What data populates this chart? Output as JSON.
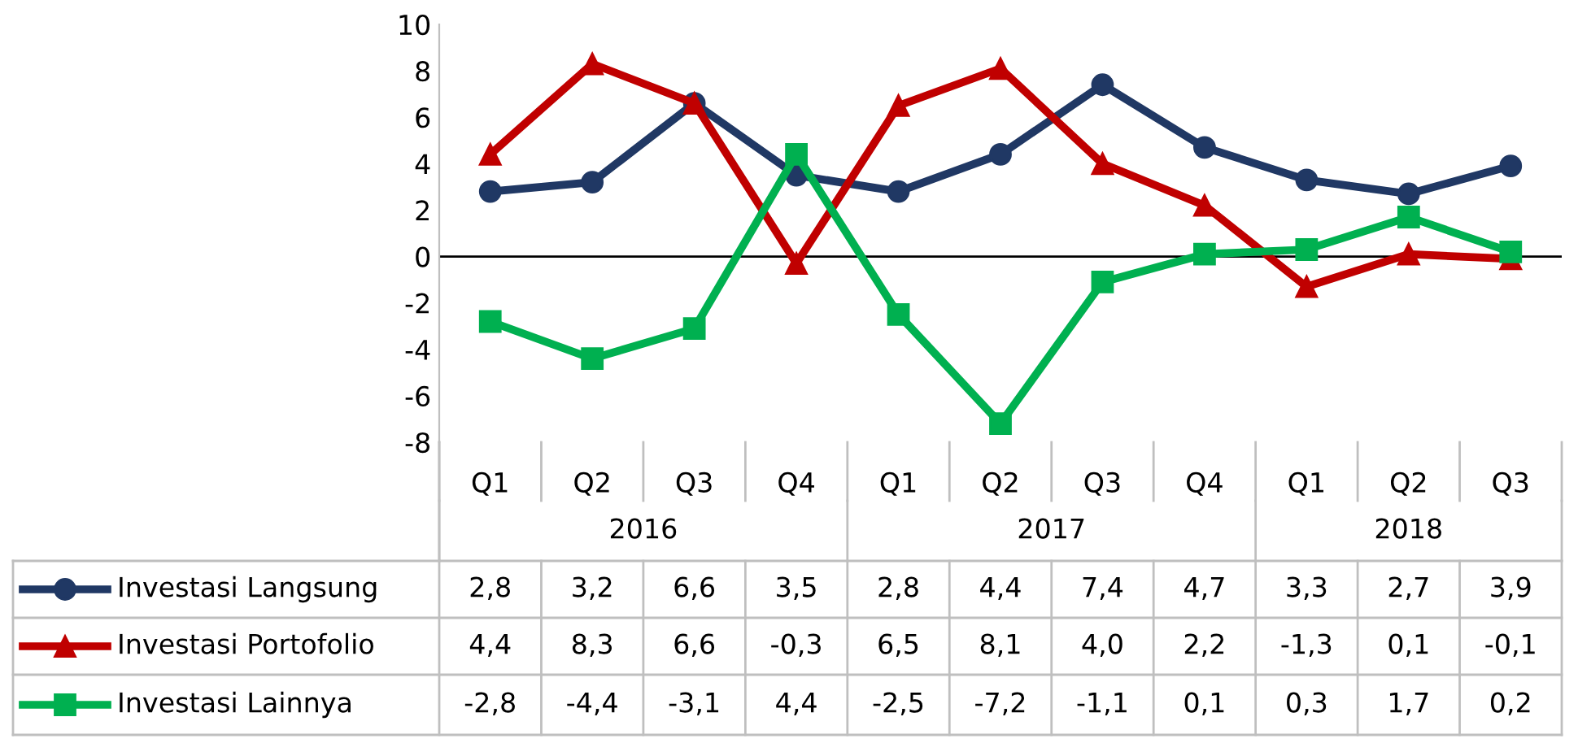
{
  "chart_data": {
    "type": "line",
    "categories": [
      "Q1",
      "Q2",
      "Q3",
      "Q4",
      "Q1",
      "Q2",
      "Q3",
      "Q4",
      "Q1",
      "Q2",
      "Q3"
    ],
    "annotations": [
      "2016",
      "2017",
      "2018"
    ],
    "series": [
      {
        "name": "Investasi Langsung",
        "color": "#203864",
        "marker": "circle",
        "values": [
          2.8,
          3.2,
          6.6,
          3.5,
          2.8,
          4.4,
          7.4,
          4.7,
          3.3,
          2.7,
          3.9
        ],
        "value_labels": [
          "2,8",
          "3,2",
          "6,6",
          "3,5",
          "2,8",
          "4,4",
          "7,4",
          "4,7",
          "3,3",
          "2,7",
          "3,9"
        ]
      },
      {
        "name": "Investasi Portofolio",
        "color": "#c00000",
        "marker": "triangle",
        "values": [
          4.4,
          8.3,
          6.6,
          -0.3,
          6.5,
          8.1,
          4.0,
          2.2,
          -1.3,
          0.1,
          -0.1
        ],
        "value_labels": [
          "4,4",
          "8,3",
          "6,6",
          "-0,3",
          "6,5",
          "8,1",
          "4,0",
          "2,2",
          "-1,3",
          "0,1",
          "-0,1"
        ]
      },
      {
        "name": "Investasi Lainnya",
        "color": "#00b050",
        "marker": "square",
        "values": [
          -2.8,
          -4.4,
          -3.1,
          4.4,
          -2.5,
          -7.2,
          -1.1,
          0.1,
          0.3,
          1.7,
          0.2
        ],
        "value_labels": [
          "-2,8",
          "-4,4",
          "-3,1",
          "4,4",
          "-2,5",
          "-7,2",
          "-1,1",
          "0,1",
          "0,3",
          "1,7",
          "0,2"
        ]
      }
    ],
    "ylim": [
      -8,
      10
    ],
    "yticks": [
      -8,
      -6,
      -4,
      -2,
      0,
      2,
      4,
      6,
      8,
      10
    ],
    "ref_lines": [
      {
        "axis": "y",
        "value": 0,
        "color": "#000000"
      }
    ],
    "grid": false,
    "legend": "bottom"
  }
}
